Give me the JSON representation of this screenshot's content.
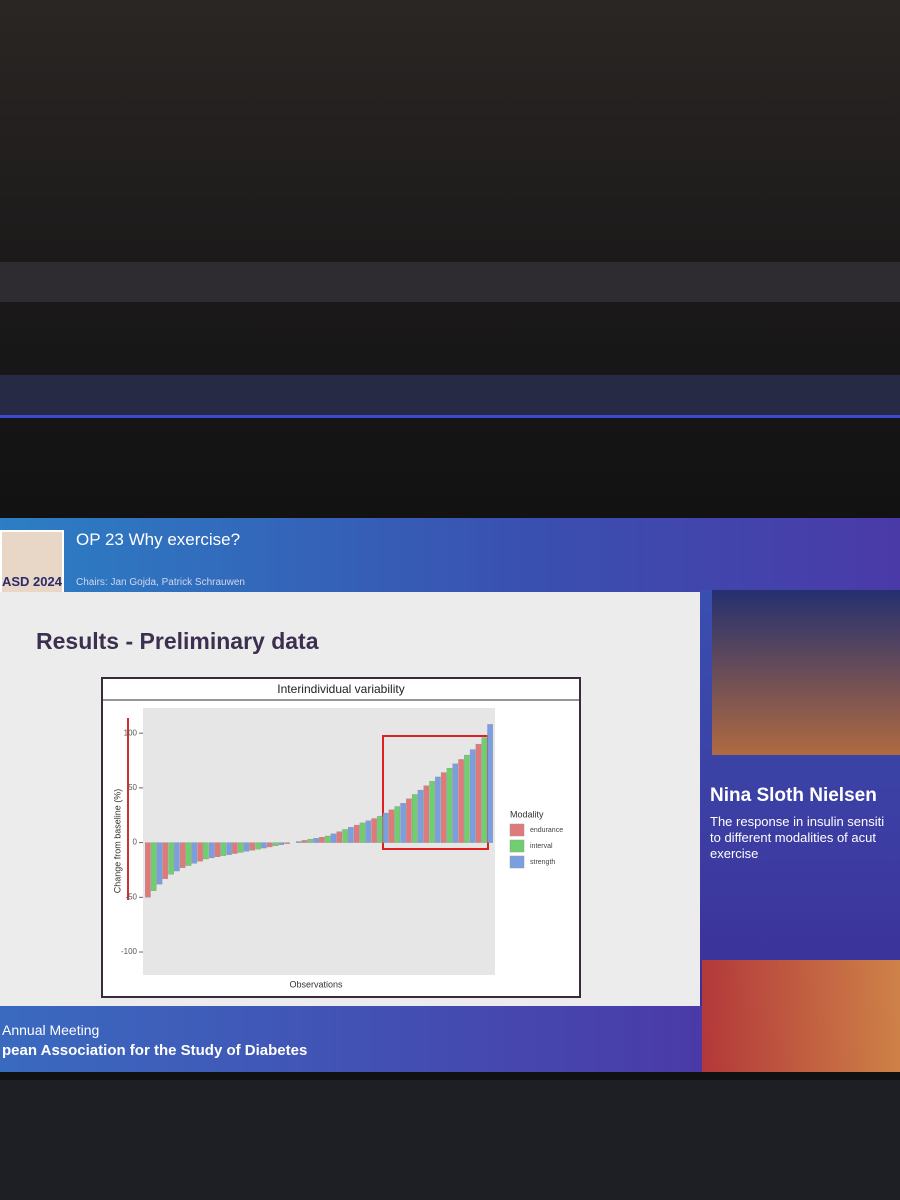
{
  "slide": {
    "session_title": "OP 23 Why exercise?",
    "chairs": "Chairs: Jan Gojda, Patrick Schrauwen",
    "logo_text": "ASD 2024",
    "heading": "Results - Preliminary data",
    "speaker_name": "Nina Sloth Nielsen",
    "talk_title": [
      "The response in insulin sensiti",
      "to different modalities of acut",
      "exercise"
    ],
    "footer": [
      "Annual Meeting",
      "pean Association for the Study of Diabetes"
    ]
  },
  "chart_data": {
    "type": "bar",
    "title": "Interindividual variability",
    "x_label": "Observations",
    "y_label": "Change from baseline (%)",
    "legend_title": "Modality",
    "categories": [
      null,
      null,
      null,
      null,
      null,
      null,
      null,
      null,
      null,
      null,
      null,
      null,
      null,
      null,
      null,
      null,
      null,
      null,
      null,
      null,
      null,
      null,
      null,
      null,
      null,
      null,
      null,
      null,
      null,
      null,
      null,
      null,
      null,
      null,
      null,
      null,
      null,
      null,
      null,
      null,
      null,
      null,
      null,
      null,
      null,
      null,
      null,
      null,
      null,
      null,
      null,
      null,
      null,
      null,
      null,
      null,
      null,
      null,
      null,
      null
    ],
    "series": [
      {
        "name": "endurance",
        "color": "#e07a7a",
        "values": [
          -50,
          null,
          null,
          -33,
          null,
          null,
          -23,
          null,
          null,
          -17,
          null,
          null,
          -13,
          null,
          null,
          -10,
          null,
          null,
          -7,
          null,
          null,
          -4,
          null,
          null,
          -1,
          null,
          null,
          2,
          null,
          null,
          5,
          null,
          null,
          10,
          null,
          null,
          16,
          null,
          null,
          22,
          null,
          null,
          30,
          null,
          null,
          40,
          null,
          null,
          52,
          null,
          null,
          64,
          null,
          null,
          76,
          null,
          null,
          90,
          null,
          null
        ]
      },
      {
        "name": "interval",
        "color": "#6fcf6f",
        "values": [
          null,
          -44,
          null,
          null,
          -29,
          null,
          null,
          -21,
          null,
          null,
          -15,
          null,
          null,
          -12,
          null,
          null,
          -9,
          null,
          null,
          -6,
          null,
          null,
          -3,
          null,
          null,
          0,
          null,
          null,
          3,
          null,
          null,
          6,
          null,
          null,
          12,
          null,
          null,
          18,
          null,
          null,
          24,
          null,
          null,
          33,
          null,
          null,
          44,
          null,
          null,
          56,
          null,
          null,
          68,
          null,
          null,
          80,
          null,
          null,
          96,
          null
        ]
      },
      {
        "name": "strength",
        "color": "#7a9ee0",
        "values": [
          null,
          null,
          -38,
          null,
          null,
          -26,
          null,
          null,
          -19,
          null,
          null,
          -14,
          null,
          null,
          -11,
          null,
          null,
          -8,
          null,
          null,
          -5,
          null,
          null,
          -2,
          null,
          null,
          1,
          null,
          null,
          4,
          null,
          null,
          8,
          null,
          null,
          14,
          null,
          null,
          20,
          null,
          null,
          27,
          null,
          null,
          36,
          null,
          null,
          48,
          null,
          null,
          60,
          null,
          null,
          72,
          null,
          null,
          85,
          null,
          null,
          108
        ]
      }
    ],
    "ylim": [
      -121,
      123
    ],
    "yticks": [
      -100,
      -50,
      0,
      50,
      100
    ]
  }
}
